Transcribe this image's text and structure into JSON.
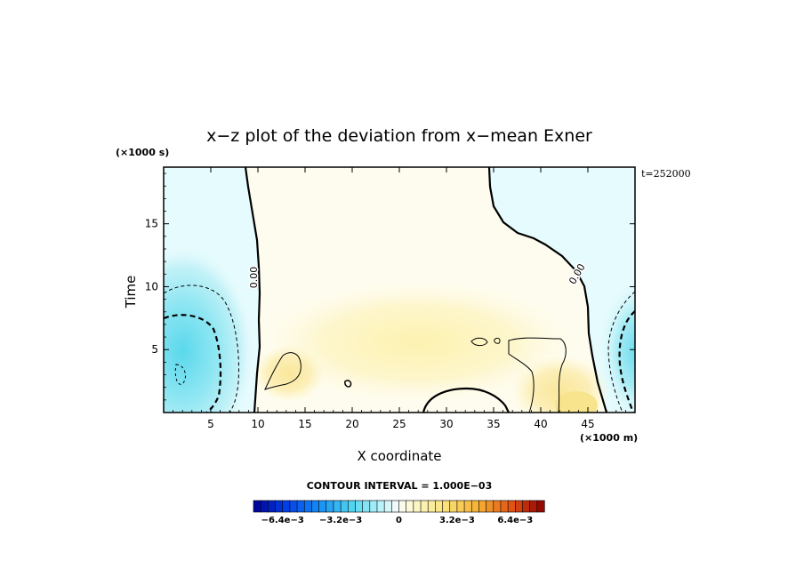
{
  "chart_data": {
    "type": "heatmap",
    "title": "x−z plot of the deviation from x−mean Exner",
    "xlabel": "X coordinate",
    "ylabel": "Time",
    "x_unit": "(×1000 m)",
    "y_unit": "(×1000 s)",
    "time_stamp": "t=252000",
    "xlim": [
      0,
      50
    ],
    "ylim": [
      0,
      19.5
    ],
    "x_ticks": [
      5,
      10,
      15,
      20,
      25,
      30,
      35,
      40,
      45
    ],
    "y_ticks": [
      5,
      10,
      15
    ],
    "contour_label": "0.00",
    "contour_interval_text": "CONTOUR INTERVAL = 1.000E−03",
    "colorbar": {
      "vmin": -0.008,
      "vmax": 0.008,
      "steps": 40,
      "tick_values": [
        -0.0064,
        -0.0032,
        0,
        0.0032,
        0.0064
      ],
      "tick_labels": [
        "−6.4e−3",
        "−3.2e−3",
        "0",
        "3.2e−3",
        "6.4e−3"
      ]
    },
    "field_features": [
      {
        "name": "left negative anomaly",
        "x": 1.5,
        "y": 3.5,
        "value": -0.004
      },
      {
        "name": "right negative anomaly",
        "x": 49.5,
        "y": 4.0,
        "value": -0.003
      },
      {
        "name": "central positive band",
        "x": 28,
        "y": 6.0,
        "value": 0.0012
      },
      {
        "name": "lower right positive core",
        "x": 44,
        "y": 1.5,
        "value": 0.0022
      }
    ]
  }
}
